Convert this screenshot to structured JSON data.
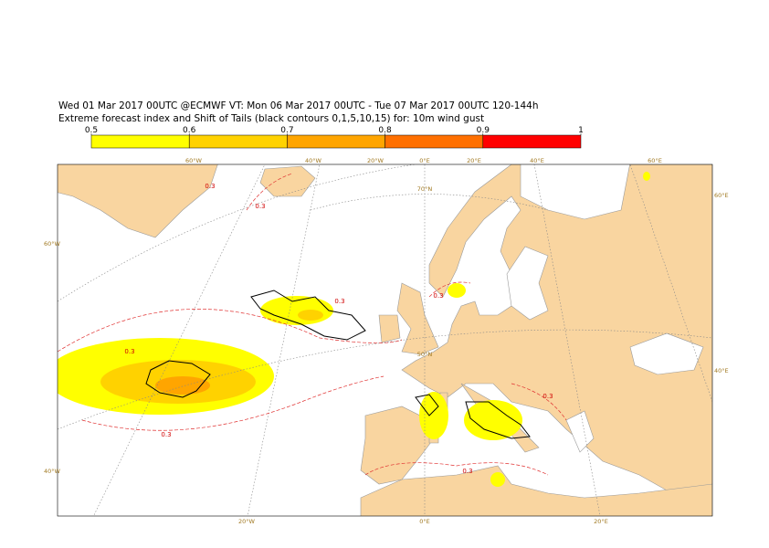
{
  "header": {
    "title_lines": [
      "Wed 01 Mar 2017 00UTC @ECMWF VT: Mon 06 Mar 2017 00UTC - Tue 07 Mar 2017 00UTC  120-144h",
      "Extreme forecast index and Shift of Tails (black contours 0,1,5,10,15) for: 10m wind gust"
    ]
  },
  "legend": {
    "ticks": [
      0.5,
      0.6,
      0.7,
      0.8,
      0.9,
      1
    ],
    "colors": [
      "#ffff00",
      "#ffd200",
      "#ffa500",
      "#ff7000",
      "#ff0000"
    ]
  },
  "map": {
    "graticule_labels": [
      "60°W",
      "40°W",
      "20°W",
      "0°E",
      "20°E",
      "40°E",
      "60°E",
      "60°W",
      "40°W",
      "60°E",
      "40°E",
      "20°W",
      "0°E",
      "20°E",
      "70°N",
      "50°N"
    ],
    "contour_labels": [
      "0.3",
      "0.3",
      "0.3",
      "0.3",
      "0.3",
      "0.3",
      "0.3",
      "0.3"
    ]
  }
}
